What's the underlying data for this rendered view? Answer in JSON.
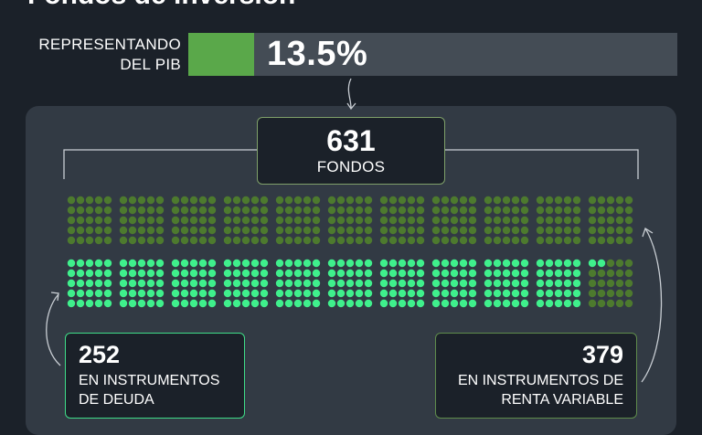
{
  "title": "Fondos de inversión",
  "pib": {
    "label_line1": "REPRESENTANDO",
    "label_line2": "DEL PIB",
    "value_text": "13.5%",
    "value": 13.5
  },
  "total": {
    "number": "631",
    "label": "FONDOS"
  },
  "deuda": {
    "number": "252",
    "line1": "EN INSTRUMENTOS",
    "line2": "DE DEUDA"
  },
  "renta": {
    "number": "379",
    "line1": "EN INSTRUMENTOS DE",
    "line2": "RENTA VARIABLE"
  },
  "colors": {
    "background": "#1b2129",
    "panel": "#323a44",
    "pib_fill": "#5aa84a",
    "pib_track": "#444c55",
    "deuda": "#3ff08c",
    "renta": "#4d7a2e",
    "box_total_border": "#7fa06a",
    "box_deuda_border": "#3fdd88",
    "box_renta_border": "#5f8c4c"
  },
  "chart_data": {
    "type": "table",
    "title": "",
    "series": [
      {
        "name": "EN INSTRUMENTOS DE DEUDA",
        "value": 252
      },
      {
        "name": "EN INSTRUMENTOS DE RENTA VARIABLE",
        "value": 379
      }
    ],
    "total": 631
  }
}
